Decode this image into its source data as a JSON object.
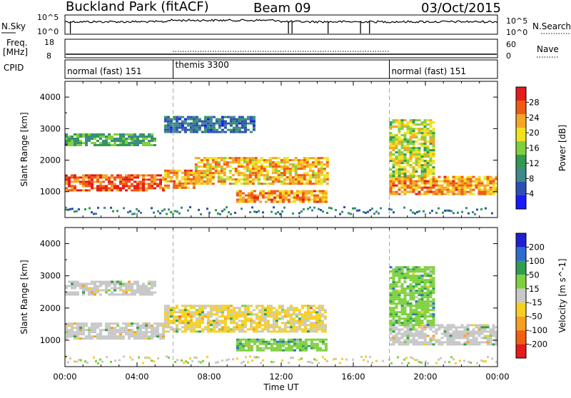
{
  "header": {
    "title": "Buckland Park (fitACF)",
    "beam": "Beam 09",
    "date": "03/Oct/2015"
  },
  "panels": {
    "nsky": {
      "label": "N.Sky",
      "ticks": [
        "10^5",
        "10^0"
      ],
      "right_label": "N.Search",
      "right_ticks": [
        "10^5",
        "10^0"
      ]
    },
    "freq": {
      "label": "Freq.",
      "unit": "[MHz]",
      "ticks": [
        "18",
        "8"
      ],
      "right_label": "Nave",
      "right_ticks": [
        "60",
        "0"
      ]
    },
    "cpid": {
      "label": "CPID",
      "modes": [
        {
          "text": "normal (fast) 151",
          "start_h": 0,
          "end_h": 6
        },
        {
          "text": "themis 3300",
          "start_h": 6,
          "end_h": 18
        },
        {
          "text": "normal (fast) 151",
          "start_h": 18,
          "end_h": 24
        }
      ]
    }
  },
  "chart_data": [
    {
      "type": "heatmap",
      "name": "power",
      "ylabel": "Slant Range [km]",
      "xlabel": "",
      "xlim": [
        0,
        24
      ],
      "ylim": [
        180,
        4500
      ],
      "yticks": [
        1000,
        2000,
        3000,
        4000
      ],
      "colorbar": {
        "label": "Power [dB]",
        "ticks": [
          4,
          8,
          12,
          16,
          20,
          24,
          28
        ],
        "range": [
          0,
          32
        ],
        "colors": [
          "#1a1aff",
          "#2d4fb5",
          "#3c8a8a",
          "#2f9a50",
          "#7fcf3f",
          "#f2e11e",
          "#f5a623",
          "#f05a14",
          "#e51a1a"
        ]
      },
      "echo_regions": [
        {
          "t0": 0.0,
          "t1": 5.5,
          "r0": 1050,
          "r1": 1550,
          "level": 27
        },
        {
          "t0": 5.5,
          "t1": 7.2,
          "r0": 1150,
          "r1": 1700,
          "level": 24
        },
        {
          "t0": 7.2,
          "t1": 14.5,
          "r0": 1250,
          "r1": 2100,
          "level": 22
        },
        {
          "t0": 9.5,
          "t1": 14.5,
          "r0": 700,
          "r1": 1050,
          "level": 24
        },
        {
          "t0": 0.0,
          "t1": 5.0,
          "r0": 2450,
          "r1": 2850,
          "level": 12
        },
        {
          "t0": 5.5,
          "t1": 10.5,
          "r0": 2900,
          "r1": 3400,
          "level": 8
        },
        {
          "t0": 18.0,
          "t1": 24.0,
          "r0": 900,
          "r1": 1500,
          "level": 24
        },
        {
          "t0": 18.0,
          "t1": 20.5,
          "r0": 1500,
          "r1": 3300,
          "level": 18
        }
      ]
    },
    {
      "type": "heatmap",
      "name": "velocity",
      "ylabel": "Slant Range [km]",
      "xlabel": "Time UT",
      "xlim": [
        0,
        24
      ],
      "xticks": [
        "00:00",
        "04:00",
        "08:00",
        "12:00",
        "16:00",
        "20:00",
        "00:00"
      ],
      "ylim": [
        180,
        4500
      ],
      "yticks": [
        1000,
        2000,
        3000,
        4000
      ],
      "colorbar": {
        "label": "Velocity [m s^-1]",
        "ticks": [
          200,
          100,
          50,
          15,
          -15,
          -50,
          -100,
          -200
        ],
        "colors": [
          "#2020d0",
          "#2d6bd0",
          "#2f9f4f",
          "#7fd03f",
          "#c8c8c8",
          "#f5d020",
          "#f5a020",
          "#f06010",
          "#e51a1a"
        ]
      },
      "echo_regions": [
        {
          "t0": 0.0,
          "t1": 5.5,
          "r0": 1050,
          "r1": 1550,
          "level": 0
        },
        {
          "t0": 5.5,
          "t1": 14.5,
          "r0": 1250,
          "r1": 2100,
          "level": -20
        },
        {
          "t0": 9.5,
          "t1": 14.5,
          "r0": 700,
          "r1": 1050,
          "level": 40
        },
        {
          "t0": 0.0,
          "t1": 5.0,
          "r0": 2450,
          "r1": 2850,
          "level": 0
        },
        {
          "t0": 18.0,
          "t1": 24.0,
          "r0": 900,
          "r1": 1500,
          "level": 0
        },
        {
          "t0": 18.0,
          "t1": 20.5,
          "r0": 1500,
          "r1": 3300,
          "level": 40
        }
      ]
    }
  ]
}
